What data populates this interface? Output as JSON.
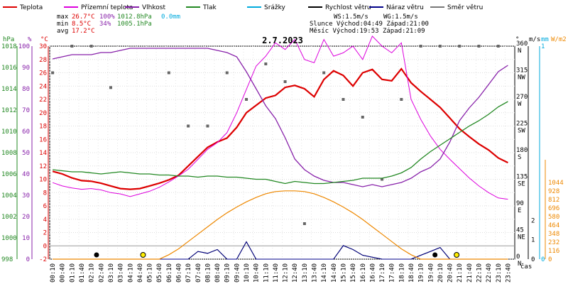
{
  "header": {
    "title": "2.7.2023",
    "legend": [
      {
        "label": "Teplota",
        "color": "#dd0000"
      },
      {
        "label": "Přízemní teplota",
        "color": "#dd00dd"
      },
      {
        "label": "Vlhkost",
        "color": "#8822aa"
      },
      {
        "label": "Tlak",
        "color": "#228822"
      },
      {
        "label": "Srážky",
        "color": "#00aadd"
      },
      {
        "label": "Rychlost větru",
        "color": "#000000"
      },
      {
        "label": "Náraz větru",
        "color": "#000088"
      },
      {
        "label": "Směr větru",
        "color": "#777777"
      }
    ],
    "stats": {
      "max_label": "max",
      "max_temp": "26.7°C",
      "max_hum": "100%",
      "max_press": "1012.8hPa",
      "precip": "0.0mm",
      "min_label": "min",
      "min_temp": "8.5°C",
      "min_hum": "34%",
      "min_press": "1005.1hPa",
      "avg_label": "avg",
      "avg_temp": "17.2°C",
      "ws": "WS:1.5m/s",
      "wg": "WG:1.5m/s",
      "sun": "Slunce Východ:04:49  Západ:21:00",
      "moon": "Měsíc  Východ:19:53  Západ:21:09"
    },
    "axis_units": {
      "hpa": "hPa",
      "pct": "%",
      "degc": "°C",
      "deg": "°",
      "ms": "m/s",
      "mm": "mm",
      "wm2": "W/m2",
      "time": "čas"
    }
  },
  "chart_data": {
    "type": "line",
    "title": "2.7.2023",
    "x": [
      "00:00",
      "00:30",
      "01:00",
      "01:30",
      "02:00",
      "02:30",
      "03:00",
      "03:30",
      "04:00",
      "04:30",
      "05:00",
      "05:30",
      "06:00",
      "06:30",
      "07:00",
      "07:30",
      "08:00",
      "08:30",
      "09:00",
      "09:30",
      "10:00",
      "10:30",
      "11:00",
      "11:30",
      "12:00",
      "12:30",
      "13:00",
      "13:30",
      "14:00",
      "14:30",
      "15:00",
      "15:30",
      "16:00",
      "16:30",
      "17:00",
      "17:30",
      "18:00",
      "18:30",
      "19:00",
      "19:30",
      "20:00",
      "20:30",
      "21:00",
      "21:30",
      "22:00",
      "22:30",
      "23:00",
      "23:30"
    ],
    "x_tick_labels": [
      "00:10",
      "00:40",
      "01:10",
      "01:40",
      "02:10",
      "02:40",
      "03:10",
      "03:40",
      "04:10",
      "04:40",
      "05:10",
      "05:40",
      "06:10",
      "06:40",
      "07:10",
      "07:40",
      "08:10",
      "08:40",
      "09:10",
      "09:40",
      "10:10",
      "10:40",
      "11:10",
      "11:40",
      "12:10",
      "12:40",
      "13:10",
      "13:40",
      "14:10",
      "14:40",
      "15:10",
      "15:40",
      "16:10",
      "16:40",
      "17:10",
      "17:40",
      "18:10",
      "18:40",
      "19:10",
      "19:40",
      "20:10",
      "20:40",
      "21:10",
      "21:40",
      "22:10",
      "22:40",
      "23:10",
      "23:40"
    ],
    "series": [
      {
        "name": "Teplota",
        "color": "#dd0000",
        "unit": "°C",
        "values": [
          11.2,
          10.8,
          10.2,
          9.8,
          9.7,
          9.4,
          9.0,
          8.6,
          8.5,
          8.6,
          9.0,
          9.4,
          9.9,
          10.6,
          12.0,
          13.4,
          14.8,
          15.6,
          16.2,
          17.8,
          20.0,
          21.1,
          22.2,
          22.6,
          23.8,
          24.1,
          23.6,
          22.4,
          25.0,
          26.3,
          25.6,
          24.0,
          26.0,
          26.5,
          25.0,
          24.8,
          26.6,
          24.5,
          23.2,
          22.0,
          20.8,
          19.2,
          17.6,
          16.4,
          15.3,
          14.4,
          13.2,
          12.5
        ]
      },
      {
        "name": "Přízemní teplota",
        "color": "#dd00dd",
        "unit": "°C",
        "values": [
          9.5,
          9.0,
          8.7,
          8.5,
          8.6,
          8.4,
          8.0,
          7.8,
          7.4,
          7.8,
          8.2,
          8.8,
          9.6,
          10.5,
          11.5,
          13.0,
          14.5,
          15.5,
          17.0,
          20.0,
          23.5,
          27.0,
          28.5,
          30.5,
          29.5,
          31.0,
          28.0,
          27.5,
          31.0,
          28.5,
          29.0,
          30.0,
          28.0,
          31.5,
          30.0,
          29.0,
          30.5,
          22.0,
          19.0,
          16.5,
          14.5,
          13.0,
          11.6,
          10.2,
          9.0,
          8.0,
          7.2,
          7.0
        ]
      },
      {
        "name": "Vlhkost",
        "color": "#8822aa",
        "unit": "%",
        "values": [
          94,
          95,
          96,
          96,
          96,
          97,
          97,
          98,
          99,
          99,
          99,
          99,
          99,
          99,
          99,
          99,
          99,
          98,
          97,
          95,
          88,
          80,
          72,
          66,
          57,
          47,
          42,
          39,
          37,
          36,
          36,
          35,
          34,
          35,
          34,
          35,
          36,
          38,
          41,
          43,
          47,
          55,
          65,
          71,
          76,
          82,
          88,
          91
        ]
      },
      {
        "name": "Tlak",
        "color": "#228822",
        "unit": "hPa",
        "values": [
          1006.4,
          1006.3,
          1006.2,
          1006.2,
          1006.1,
          1006.0,
          1006.1,
          1006.2,
          1006.1,
          1006.0,
          1006.0,
          1005.9,
          1005.9,
          1005.8,
          1005.8,
          1005.7,
          1005.8,
          1005.8,
          1005.7,
          1005.7,
          1005.6,
          1005.5,
          1005.5,
          1005.3,
          1005.1,
          1005.3,
          1005.2,
          1005.1,
          1005.1,
          1005.2,
          1005.3,
          1005.4,
          1005.6,
          1005.6,
          1005.6,
          1005.8,
          1006.1,
          1006.6,
          1007.4,
          1008.1,
          1008.7,
          1009.3,
          1009.9,
          1010.5,
          1011.0,
          1011.6,
          1012.3,
          1012.8
        ]
      },
      {
        "name": "Rychlost větru",
        "color": "#000000",
        "unit": "m/s",
        "values": [
          0,
          0,
          0,
          0,
          0,
          0,
          0,
          0,
          0,
          0,
          0,
          0,
          0,
          0,
          0,
          0.4,
          0.3,
          0.5,
          0,
          0,
          0.9,
          0,
          0,
          0,
          0,
          0,
          0,
          0,
          0,
          0,
          0.7,
          0.5,
          0.2,
          0.1,
          0,
          0,
          0,
          0,
          0.2,
          0.4,
          0.6,
          0,
          0,
          0,
          0,
          0,
          0,
          0
        ]
      },
      {
        "name": "Náraz větru",
        "color": "#000088",
        "unit": "m/s",
        "values": [
          0,
          0,
          0,
          0,
          0,
          0,
          0,
          0,
          0,
          0,
          0,
          0,
          0,
          0,
          0,
          0.4,
          0.3,
          0.5,
          0,
          0,
          0.9,
          0,
          0,
          0,
          0,
          0,
          0,
          0,
          0,
          0,
          0.7,
          0.5,
          0.2,
          0.1,
          0,
          0,
          0,
          0,
          0.2,
          0.4,
          0.6,
          0,
          0,
          0,
          0,
          0,
          0,
          0
        ]
      },
      {
        "name": "Sluneční záření",
        "color": "#ee8800",
        "unit": "W/m2",
        "values": [
          0,
          0,
          0,
          0,
          0,
          0,
          0,
          0,
          0,
          0,
          0,
          0,
          60,
          140,
          240,
          340,
          440,
          540,
          630,
          710,
          780,
          840,
          890,
          920,
          930,
          930,
          920,
          890,
          840,
          780,
          710,
          630,
          540,
          440,
          340,
          240,
          140,
          60,
          0,
          0,
          0,
          0,
          0,
          0,
          0,
          0,
          0,
          0
        ]
      }
    ],
    "wind_direction": [
      {
        "x": "00:00",
        "deg": 315
      },
      {
        "x": "01:00",
        "deg": 360
      },
      {
        "x": "02:00",
        "deg": 360
      },
      {
        "x": "03:00",
        "deg": 290
      },
      {
        "x": "06:00",
        "deg": 315
      },
      {
        "x": "07:00",
        "deg": 225
      },
      {
        "x": "08:00",
        "deg": 225
      },
      {
        "x": "09:00",
        "deg": 315
      },
      {
        "x": "10:00",
        "deg": 270
      },
      {
        "x": "11:00",
        "deg": 330
      },
      {
        "x": "12:00",
        "deg": 300
      },
      {
        "x": "13:00",
        "deg": 60
      },
      {
        "x": "14:00",
        "deg": 315
      },
      {
        "x": "15:00",
        "deg": 270
      },
      {
        "x": "16:00",
        "deg": 240
      },
      {
        "x": "17:00",
        "deg": 135
      },
      {
        "x": "18:00",
        "deg": 270
      },
      {
        "x": "19:00",
        "deg": 360
      },
      {
        "x": "20:00",
        "deg": 360
      },
      {
        "x": "21:00",
        "deg": 360
      },
      {
        "x": "22:00",
        "deg": 360
      },
      {
        "x": "23:00",
        "deg": 360
      }
    ],
    "axes": {
      "pressure": {
        "label": "hPa",
        "ticks": [
          998,
          1000,
          1002,
          1004,
          1006,
          1008,
          1010,
          1012,
          1014,
          1016,
          1018
        ]
      },
      "humidity": {
        "label": "%",
        "ticks": [
          0,
          10,
          20,
          30,
          40,
          50,
          60,
          70,
          80,
          90,
          100
        ]
      },
      "temperature": {
        "label": "°C",
        "ticks": [
          -2,
          0,
          2,
          4,
          6,
          8,
          10,
          12,
          14,
          16,
          18,
          20,
          22,
          24,
          26,
          28,
          30
        ]
      },
      "direction": {
        "label": "°",
        "ticks": [
          {
            "v": "0",
            "d": "N"
          },
          {
            "v": "45",
            "d": "NE"
          },
          {
            "v": "90",
            "d": "E"
          },
          {
            "v": "135",
            "d": "SE"
          },
          {
            "v": "180",
            "d": "S"
          },
          {
            "v": "225",
            "d": "SW"
          },
          {
            "v": "270",
            "d": "W"
          },
          {
            "v": "315",
            "d": "NW"
          },
          {
            "v": "360",
            "d": "N"
          }
        ]
      },
      "wind": {
        "label": "m/s",
        "ticks": [
          0,
          1,
          2
        ]
      },
      "precip": {
        "label": "mm",
        "ticks": [
          0,
          1
        ]
      },
      "radiation": {
        "label": "W/m2",
        "ticks": [
          0,
          116,
          232,
          348,
          464,
          580,
          696,
          812,
          928,
          1044
        ]
      }
    },
    "sun_events": {
      "sunrise": "04:49",
      "sunset": "21:00"
    },
    "moon_events": {
      "moonrise": "19:53",
      "moonset": "21:09"
    },
    "grid": true
  }
}
